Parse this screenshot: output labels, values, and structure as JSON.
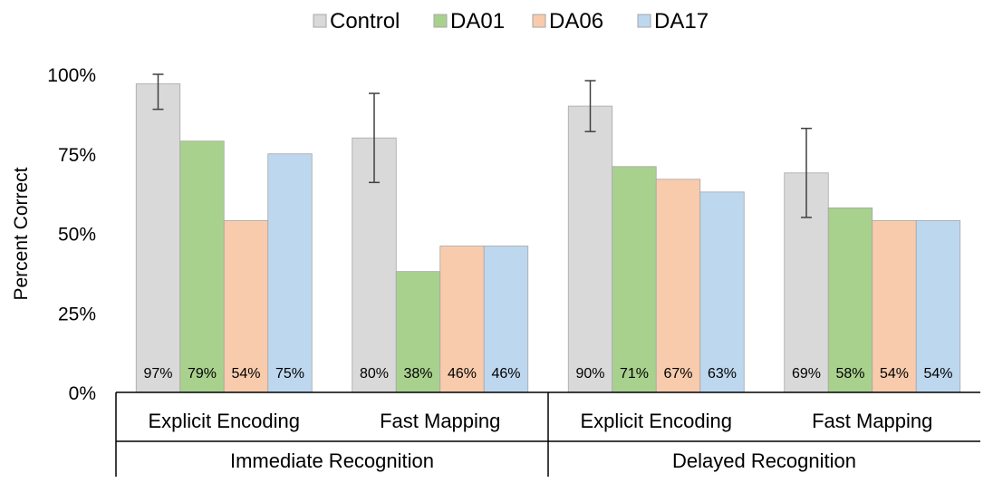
{
  "chart_data": {
    "type": "bar",
    "ylabel": "Percent Correct",
    "ylim": [
      0,
      100
    ],
    "y_ticks": [
      "0%",
      "25%",
      "50%",
      "75%",
      "100%"
    ],
    "grid": false,
    "legend_position": "top",
    "groups": [
      {
        "label": "Immediate Recognition",
        "categories": [
          "Explicit Encoding",
          "Fast Mapping"
        ]
      },
      {
        "label": "Delayed Recognition",
        "categories": [
          "Explicit Encoding",
          "Fast Mapping"
        ]
      }
    ],
    "categories": [
      "Explicit Encoding",
      "Fast Mapping",
      "Explicit Encoding",
      "Fast Mapping"
    ],
    "series": [
      {
        "name": "Control",
        "color": "#d9d9d9",
        "values": [
          97,
          80,
          90,
          69
        ],
        "labels": [
          "97%",
          "80%",
          "90%",
          "69%"
        ],
        "error_low": [
          89,
          66,
          82,
          55
        ],
        "error_high": [
          100,
          94,
          98,
          83
        ]
      },
      {
        "name": "DA01",
        "color": "#a9d18e",
        "values": [
          79,
          38,
          71,
          58
        ],
        "labels": [
          "79%",
          "38%",
          "71%",
          "58%"
        ]
      },
      {
        "name": "DA06",
        "color": "#f8cbad",
        "values": [
          54,
          46,
          67,
          54
        ],
        "labels": [
          "54%",
          "46%",
          "67%",
          "54%"
        ]
      },
      {
        "name": "DA17",
        "color": "#bdd7ee",
        "values": [
          75,
          46,
          63,
          54
        ],
        "labels": [
          "75%",
          "46%",
          "63%",
          "54%"
        ]
      }
    ]
  }
}
